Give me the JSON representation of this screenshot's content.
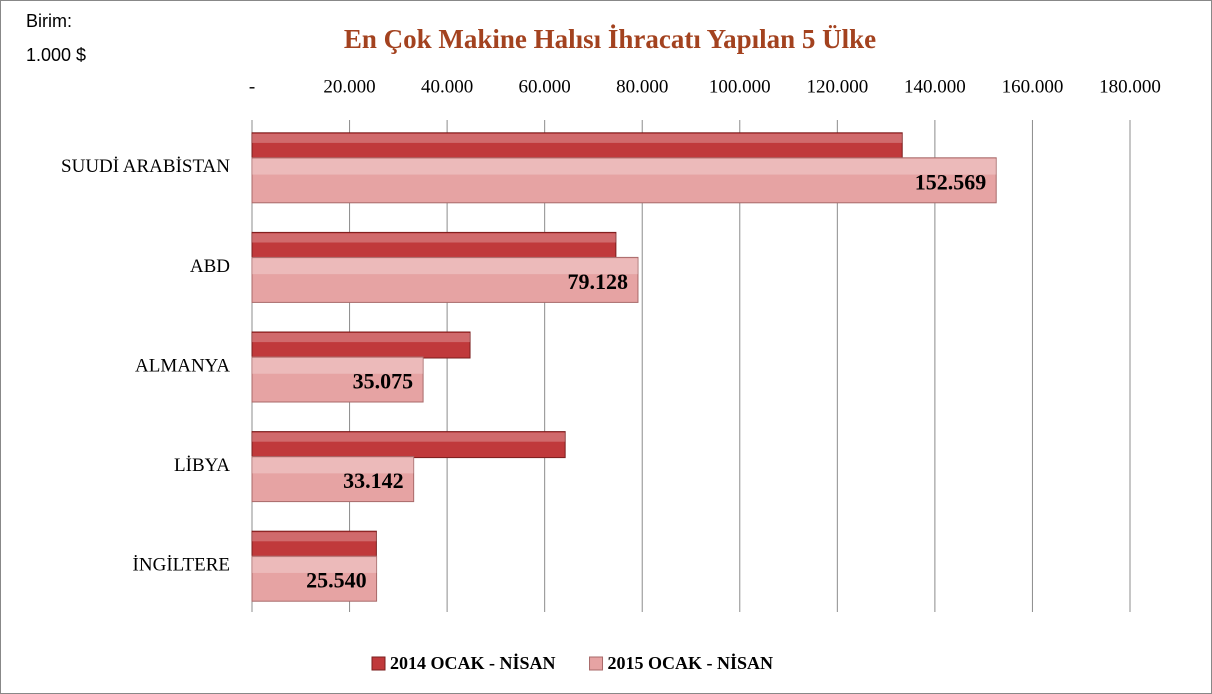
{
  "chart_data": {
    "type": "hbar",
    "title": "En Çok Makine Halısı İhracatı Yapılan 5 Ülke",
    "unit_label": [
      "Birim:",
      "1.000 $"
    ],
    "categories": [
      "SUUDİ ARABİSTAN",
      "ABD",
      "ALMANYA",
      "LİBYA",
      "İNGİLTERE"
    ],
    "series": [
      {
        "name": "2014 OCAK - NİSAN",
        "color": "#c0393b",
        "values": [
          133300,
          74600,
          44700,
          64200,
          25500
        ]
      },
      {
        "name": "2015 OCAK - NİSAN",
        "color": "#e6a3a3",
        "values": [
          152569,
          79128,
          35075,
          33142,
          25540
        ],
        "value_labels": [
          "152.569",
          "79.128",
          "35.075",
          "33.142",
          "25.540"
        ]
      }
    ],
    "xlim": [
      0,
      180000
    ],
    "xticks": [
      {
        "value": 0,
        "label": "-"
      },
      {
        "value": 20000,
        "label": "20.000"
      },
      {
        "value": 40000,
        "label": "40.000"
      },
      {
        "value": 60000,
        "label": "60.000"
      },
      {
        "value": 80000,
        "label": "80.000"
      },
      {
        "value": 100000,
        "label": "100.000"
      },
      {
        "value": 120000,
        "label": "120.000"
      },
      {
        "value": 140000,
        "label": "140.000"
      },
      {
        "value": 160000,
        "label": "160.000"
      },
      {
        "value": 180000,
        "label": "180.000"
      }
    ],
    "grid": true,
    "legend": "bottom"
  }
}
